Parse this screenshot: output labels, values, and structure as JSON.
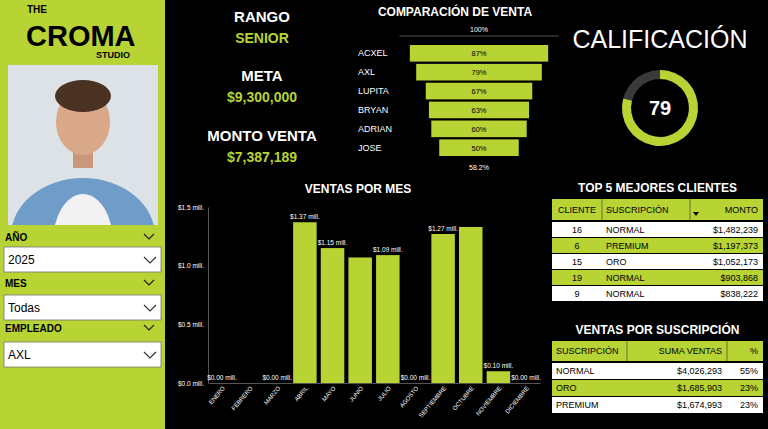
{
  "brand": {
    "lines": [
      "THE",
      "CROMA",
      "STUDIO"
    ]
  },
  "filters": [
    {
      "label": "AÑO",
      "value": "2025"
    },
    {
      "label": "MES",
      "value": "Todas"
    },
    {
      "label": "EMPLEADO",
      "value": "AXL"
    }
  ],
  "kpis": [
    {
      "label": "RANGO",
      "value": "SENIOR"
    },
    {
      "label": "META",
      "value": "$9,300,000"
    },
    {
      "label": "MONTO VENTA",
      "value": "$7,387,189"
    }
  ],
  "chart_data": [
    {
      "type": "funnel",
      "title": "COMPARACIÓN DE VENTA",
      "categories": [
        "ACXEL",
        "AXL",
        "LUPITA",
        "BRYAN",
        "ADRIAN",
        "JOSE"
      ],
      "values": [
        87,
        79,
        67,
        63,
        60,
        50
      ],
      "value_labels": [
        "87%",
        "79%",
        "67%",
        "63%",
        "60%",
        "50%"
      ],
      "data_labels": true,
      "color": "#b7d334",
      "xlim": [
        0,
        100
      ],
      "tick_labels": false,
      "annotations": [
        "100%",
        "58.2%"
      ]
    },
    {
      "type": "bar",
      "title": "VENTAS POR MES",
      "categories": [
        "ENERO",
        "FEBRERO",
        "MARZO",
        "ABRIL",
        "MAYO",
        "JUNIO",
        "JULIO",
        "AGOSTO",
        "SEPTIEMBRE",
        "OCTUBRE",
        "NOVIEMBRE",
        "DICIEMBRE"
      ],
      "values": [
        0,
        0,
        0,
        1.37,
        1.15,
        1.07,
        1.09,
        0,
        1.27,
        1.33,
        0.1,
        0
      ],
      "value_labels": [
        "$0.00 mill.",
        null,
        "$0.00 mill.",
        "$1.37 mill.",
        "$1.15 mill.",
        null,
        "$1.09 mill.",
        "$0.00 mill.",
        "$1.27 mill.",
        null,
        "$0.10 mill.",
        "$0.00 mill."
      ],
      "data_labels": true,
      "color": "#b7d334",
      "grid": false,
      "ylim": [
        0,
        1.5
      ],
      "yticks": [
        {
          "value": 0,
          "label": "$0.0 mill."
        },
        {
          "value": 0.5,
          "label": "$0.5 mill."
        },
        {
          "value": 1,
          "label": "$1.0 mill."
        },
        {
          "value": 1.5,
          "label": "$1.5 mill."
        }
      ]
    },
    {
      "type": "gauge",
      "title": "CALIFICACIÓN",
      "values": [
        79
      ],
      "ylim": [
        0,
        100
      ],
      "data_labels": true,
      "color": "#b7d334"
    }
  ],
  "tables": [
    {
      "title": "TOP 5 MEJORES CLIENTES",
      "columns": [
        "CLIENTE",
        "SUSCRIPCIÓN",
        "MONTO"
      ],
      "rows": [
        [
          "16",
          "NORMAL",
          "$1,482,239"
        ],
        [
          "6",
          "PREMIUM",
          "$1,197,373"
        ],
        [
          "15",
          "ORO",
          "$1,052,173"
        ],
        [
          "19",
          "NORMAL",
          "$903,868"
        ],
        [
          "9",
          "NORMAL",
          "$838,222"
        ]
      ]
    },
    {
      "title": "VENTAS POR SUSCRIPCIÓN",
      "columns": [
        "SUSCRIPCIÓN",
        "SUMA VENTAS",
        "%"
      ],
      "rows": [
        [
          "NORMAL",
          "$4,026,293",
          "55%"
        ],
        [
          "ORO",
          "$1,685,903",
          "23%"
        ],
        [
          "PREMIUM",
          "$1,674,993",
          "23%"
        ]
      ]
    }
  ]
}
